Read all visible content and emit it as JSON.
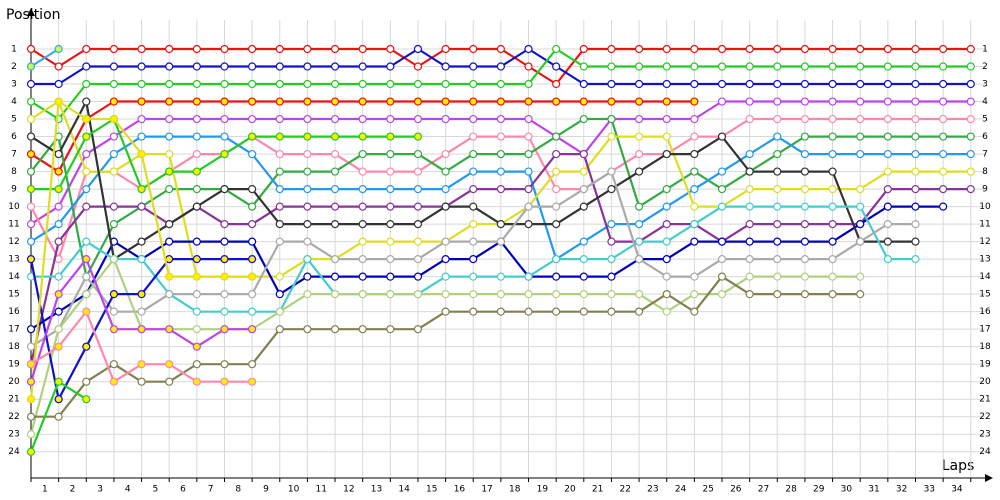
{
  "chart_data": {
    "type": "line",
    "ylabel": "Position",
    "xlabel": "Laps",
    "grid": true,
    "inverted_y": true,
    "x": [
      0,
      1,
      2,
      3,
      4,
      5,
      6,
      7,
      8,
      9,
      10,
      11,
      12,
      13,
      14,
      15,
      16,
      17,
      18,
      19,
      20,
      21,
      22,
      23,
      24,
      25,
      26,
      27,
      28,
      29,
      30,
      31,
      32,
      33,
      34
    ],
    "xlim": [
      0,
      35
    ],
    "xticks": [
      {
        "value": 0.5,
        "label": "1"
      },
      {
        "value": 1.5,
        "label": "2"
      },
      {
        "value": 2.5,
        "label": "3"
      },
      {
        "value": 3.5,
        "label": "4"
      },
      {
        "value": 4.5,
        "label": "5"
      },
      {
        "value": 5.5,
        "label": "6"
      },
      {
        "value": 6.5,
        "label": "7"
      },
      {
        "value": 7.5,
        "label": "8"
      },
      {
        "value": 8.5,
        "label": "9"
      },
      {
        "value": 9.5,
        "label": "10"
      },
      {
        "value": 10.5,
        "label": "11"
      },
      {
        "value": 11.5,
        "label": "12"
      },
      {
        "value": 12.5,
        "label": "13"
      },
      {
        "value": 13.5,
        "label": "14"
      },
      {
        "value": 14.5,
        "label": "15"
      },
      {
        "value": 15.5,
        "label": "16"
      },
      {
        "value": 16.5,
        "label": "17"
      },
      {
        "value": 17.5,
        "label": "18"
      },
      {
        "value": 18.5,
        "label": "19"
      },
      {
        "value": 19.5,
        "label": "20"
      },
      {
        "value": 20.5,
        "label": "21"
      },
      {
        "value": 21.5,
        "label": "22"
      },
      {
        "value": 22.5,
        "label": "23"
      },
      {
        "value": 23.5,
        "label": "24"
      },
      {
        "value": 24.5,
        "label": "25"
      },
      {
        "value": 25.5,
        "label": "26"
      },
      {
        "value": 26.5,
        "label": "27"
      },
      {
        "value": 27.5,
        "label": "28"
      },
      {
        "value": 28.5,
        "label": "29"
      },
      {
        "value": 29.5,
        "label": "30"
      },
      {
        "value": 30.5,
        "label": "31"
      },
      {
        "value": 31.5,
        "label": "32"
      },
      {
        "value": 32.5,
        "label": "33"
      },
      {
        "value": 33.5,
        "label": "34"
      }
    ],
    "ylim": [
      25.5,
      0
    ],
    "yticks": [
      1,
      2,
      3,
      4,
      5,
      6,
      7,
      8,
      9,
      10,
      11,
      12,
      13,
      14,
      15,
      16,
      17,
      18,
      19,
      20,
      21,
      22,
      23,
      24
    ],
    "series": [
      {
        "color": "#ee1111",
        "marker_fill": "#ffffff",
        "values": [
          1,
          2,
          1,
          1,
          1,
          1,
          1,
          1,
          1,
          1,
          1,
          1,
          1,
          1,
          2,
          1,
          1,
          1,
          2,
          3,
          1,
          1,
          1,
          1,
          1,
          1,
          1,
          1,
          1,
          1,
          1,
          1,
          1,
          1,
          1
        ]
      },
      {
        "color": "#1111cc",
        "marker_fill": "#ffffff",
        "values": [
          3,
          3,
          2,
          2,
          2,
          2,
          2,
          2,
          2,
          2,
          2,
          2,
          2,
          2,
          1,
          2,
          2,
          2,
          1,
          2,
          3,
          3,
          3,
          3,
          3,
          3,
          3,
          3,
          3,
          3,
          3,
          3,
          3,
          3,
          3
        ]
      },
      {
        "color": "#22cc22",
        "marker_fill": "#ffffff",
        "values": [
          4,
          5,
          3,
          3,
          3,
          3,
          3,
          3,
          3,
          3,
          3,
          3,
          3,
          3,
          3,
          3,
          3,
          3,
          3,
          1,
          2,
          2,
          2,
          2,
          2,
          2,
          2,
          2,
          2,
          2,
          2,
          2,
          2,
          2,
          2
        ]
      },
      {
        "color": "#33aaee",
        "marker_fill": "#ccff44",
        "values": [
          2,
          1,
          null,
          null,
          null,
          null,
          null,
          null,
          null,
          null,
          null,
          null,
          null,
          null,
          null,
          null,
          null,
          null,
          null,
          null,
          null,
          null,
          null,
          null,
          null,
          null,
          null,
          null,
          null,
          null,
          null,
          null,
          null,
          null,
          null
        ]
      },
      {
        "color": "#ee1111",
        "marker_fill": "#ffee00",
        "values": [
          7,
          8,
          5,
          4,
          4,
          4,
          4,
          4,
          4,
          4,
          4,
          4,
          4,
          4,
          4,
          4,
          4,
          4,
          4,
          4,
          4,
          4,
          4,
          4,
          4,
          null,
          null,
          null,
          null,
          null,
          null,
          null,
          null,
          null,
          null
        ]
      },
      {
        "color": "#bb44ee",
        "marker_fill": "#ffffff",
        "values": [
          11,
          10,
          7,
          6,
          5,
          5,
          5,
          5,
          5,
          5,
          5,
          5,
          5,
          5,
          5,
          5,
          5,
          5,
          5,
          6,
          7,
          5,
          5,
          5,
          5,
          4,
          4,
          4,
          4,
          4,
          4,
          4,
          4,
          4,
          4
        ]
      },
      {
        "color": "#ff88aa",
        "marker_fill": "#ffffff",
        "values": [
          10,
          13,
          8,
          8,
          9,
          8,
          7,
          7,
          6,
          7,
          7,
          7,
          8,
          8,
          8,
          7,
          6,
          6,
          6,
          9,
          9,
          8,
          7,
          7,
          6,
          6,
          5,
          5,
          5,
          5,
          5,
          5,
          5,
          5,
          5
        ]
      },
      {
        "color": "#33aa44",
        "marker_fill": "#ffffff",
        "values": [
          8,
          6,
          14,
          11,
          10,
          9,
          9,
          9,
          10,
          8,
          8,
          8,
          7,
          7,
          7,
          8,
          7,
          7,
          7,
          6,
          5,
          5,
          10,
          9,
          8,
          9,
          8,
          7,
          6,
          6,
          6,
          6,
          6,
          6,
          6
        ]
      },
      {
        "color": "#2299ee",
        "marker_fill": "#ffffff",
        "values": [
          12,
          11,
          9,
          7,
          6,
          6,
          6,
          6,
          7,
          9,
          9,
          9,
          9,
          9,
          9,
          9,
          8,
          8,
          8,
          13,
          12,
          11,
          11,
          10,
          9,
          8,
          7,
          6,
          7,
          7,
          7,
          7,
          7,
          7,
          7
        ]
      },
      {
        "color": "#dddd22",
        "marker_fill": "#ffffff",
        "values": [
          5,
          4,
          8,
          8,
          7,
          7,
          14,
          14,
          14,
          14,
          13,
          13,
          12,
          12,
          12,
          12,
          11,
          11,
          10,
          8,
          8,
          6,
          6,
          6,
          10,
          10,
          9,
          9,
          9,
          9,
          9,
          8,
          8,
          8,
          8
        ]
      },
      {
        "color": "#883399",
        "marker_fill": "#ffffff",
        "values": [
          19,
          12,
          10,
          10,
          10,
          11,
          10,
          11,
          11,
          10,
          10,
          10,
          10,
          10,
          10,
          10,
          9,
          9,
          9,
          7,
          7,
          12,
          12,
          11,
          11,
          12,
          11,
          11,
          11,
          11,
          11,
          9,
          9,
          9,
          9
        ]
      },
      {
        "color": "#0000bb",
        "marker_fill": "#ffffff",
        "values": [
          17,
          16,
          15,
          12,
          13,
          12,
          12,
          12,
          12,
          15,
          14,
          14,
          14,
          14,
          14,
          13,
          13,
          12,
          14,
          14,
          14,
          14,
          13,
          13,
          12,
          12,
          12,
          12,
          12,
          12,
          11,
          10,
          10,
          10,
          null
        ]
      },
      {
        "color": "#333333",
        "marker_fill": "#ffffff",
        "values": [
          6,
          7,
          4,
          13,
          12,
          11,
          10,
          9,
          9,
          11,
          11,
          11,
          11,
          11,
          11,
          10,
          10,
          11,
          11,
          11,
          10,
          9,
          8,
          7,
          7,
          6,
          8,
          8,
          8,
          8,
          12,
          12,
          12,
          null,
          null
        ]
      },
      {
        "color": "#44cccc",
        "marker_fill": "#ffffff",
        "values": [
          14,
          14,
          12,
          13,
          13,
          15,
          16,
          16,
          16,
          16,
          13,
          15,
          15,
          15,
          15,
          14,
          14,
          14,
          14,
          13,
          13,
          13,
          12,
          12,
          11,
          10,
          10,
          10,
          10,
          10,
          10,
          13,
          13,
          null,
          null
        ]
      },
      {
        "color": "#aaaaaa",
        "marker_fill": "#ffffff",
        "values": [
          18,
          17,
          14,
          16,
          16,
          15,
          15,
          15,
          15,
          12,
          12,
          13,
          13,
          13,
          13,
          12,
          12,
          12,
          10,
          10,
          9,
          8,
          13,
          14,
          14,
          13,
          13,
          13,
          13,
          13,
          12,
          11,
          11,
          null,
          null
        ]
      },
      {
        "color": "#b0d080",
        "marker_fill": "#ffffff",
        "values": [
          23,
          17,
          15,
          13,
          17,
          17,
          17,
          17,
          17,
          16,
          15,
          15,
          15,
          15,
          15,
          15,
          15,
          15,
          15,
          15,
          15,
          15,
          15,
          16,
          15,
          15,
          14,
          14,
          14,
          14,
          14,
          null,
          null,
          null,
          null
        ]
      },
      {
        "color": "#808050",
        "marker_fill": "#ffffff",
        "values": [
          22,
          22,
          20,
          19,
          20,
          20,
          19,
          19,
          19,
          17,
          17,
          17,
          17,
          17,
          17,
          16,
          16,
          16,
          16,
          16,
          16,
          16,
          16,
          15,
          16,
          14,
          15,
          15,
          15,
          15,
          15,
          null,
          null,
          null,
          null
        ]
      },
      {
        "color": "#22cc22",
        "marker_fill": "#ffee00",
        "values": [
          9,
          9,
          6,
          5,
          9,
          8,
          8,
          7,
          6,
          6,
          6,
          6,
          6,
          6,
          6,
          null,
          null,
          null,
          null,
          null,
          null,
          null,
          null,
          null,
          null,
          null,
          null,
          null,
          null,
          null,
          null,
          null,
          null,
          null,
          null
        ]
      },
      {
        "color": "#1111cc",
        "marker_fill": "#ffee00",
        "values": [
          13,
          21,
          18,
          15,
          15,
          13,
          13,
          13,
          13,
          null,
          null,
          null,
          null,
          null,
          null,
          null,
          null,
          null,
          null,
          null,
          null,
          null,
          null,
          null,
          null,
          null,
          null,
          null,
          null,
          null,
          null,
          null,
          null,
          null,
          null
        ]
      },
      {
        "color": "#dddd22",
        "marker_fill": "#ffee00",
        "values": [
          21,
          4,
          5,
          5,
          7,
          14,
          14,
          14,
          14,
          null,
          null,
          null,
          null,
          null,
          null,
          null,
          null,
          null,
          null,
          null,
          null,
          null,
          null,
          null,
          null,
          null,
          null,
          null,
          null,
          null,
          null,
          null,
          null,
          null,
          null
        ]
      },
      {
        "color": "#bb44ee",
        "marker_fill": "#ffee00",
        "values": [
          20,
          15,
          13,
          17,
          17,
          17,
          18,
          17,
          17,
          null,
          null,
          null,
          null,
          null,
          null,
          null,
          null,
          null,
          null,
          null,
          null,
          null,
          null,
          null,
          null,
          null,
          null,
          null,
          null,
          null,
          null,
          null,
          null,
          null,
          null
        ]
      },
      {
        "color": "#ff88aa",
        "marker_fill": "#ffee00",
        "values": [
          19,
          18,
          16,
          20,
          19,
          19,
          20,
          20,
          20,
          null,
          null,
          null,
          null,
          null,
          null,
          null,
          null,
          null,
          null,
          null,
          null,
          null,
          null,
          null,
          null,
          null,
          null,
          null,
          null,
          null,
          null,
          null,
          null,
          null,
          null
        ]
      },
      {
        "color": "#22cc22",
        "marker_fill": "#ffee00",
        "values": [
          24,
          20,
          21,
          null,
          null,
          null,
          null,
          null,
          null,
          null,
          null,
          null,
          null,
          null,
          null,
          null,
          null,
          null,
          null,
          null,
          null,
          null,
          null,
          null,
          null,
          null,
          null,
          null,
          null,
          null,
          null,
          null,
          null,
          null,
          null
        ]
      }
    ]
  }
}
